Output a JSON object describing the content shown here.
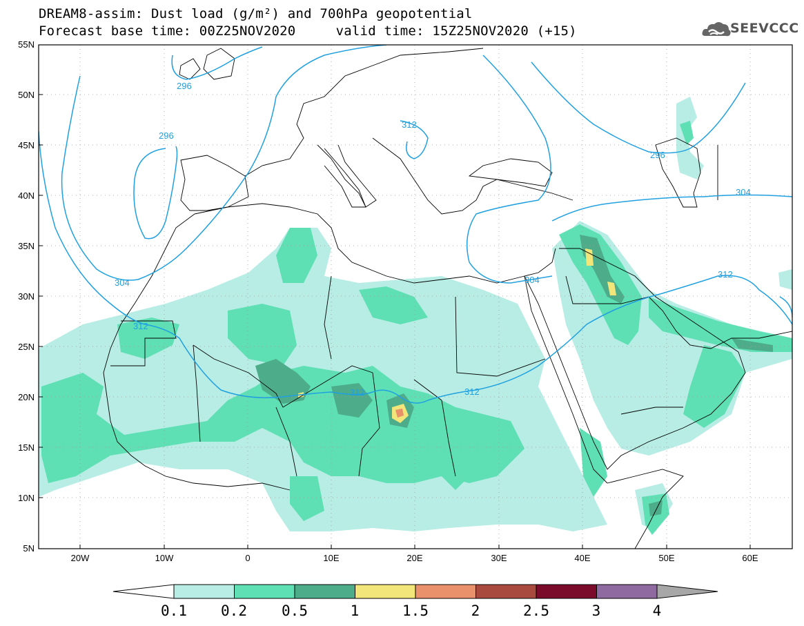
{
  "title": {
    "line1": "DREAM8-assim: Dust load (g/m²) and 700hPa geopotential",
    "line2": "Forecast base time: 00Z25NOV2020     valid time: 15Z25NOV2020 (+15)"
  },
  "logo": {
    "text": "SEEVCCC",
    "icon": "cloud-icon"
  },
  "map": {
    "lat_labels": [
      "55N",
      "50N",
      "45N",
      "40N",
      "35N",
      "30N",
      "25N",
      "20N",
      "15N",
      "10N",
      "5N"
    ],
    "lon_labels": [
      "20W",
      "10W",
      "0",
      "10E",
      "20E",
      "30E",
      "40E",
      "50E",
      "60E"
    ],
    "contour_labels": [
      "296",
      "296",
      "296",
      "304",
      "304",
      "304",
      "312",
      "312",
      "312",
      "312",
      "312",
      "312"
    ],
    "contour_color": "#1fa0e0"
  },
  "colorbar": {
    "labels": [
      "0.1",
      "0.2",
      "0.5",
      "1",
      "1.5",
      "2",
      "2.5",
      "3",
      "4"
    ],
    "colors": [
      "#b7ede4",
      "#5ee0b4",
      "#4dad8a",
      "#f2e67a",
      "#e8916a",
      "#a94a3e",
      "#7a0b2b",
      "#8e6aa0",
      "#a7a7a7"
    ]
  }
}
